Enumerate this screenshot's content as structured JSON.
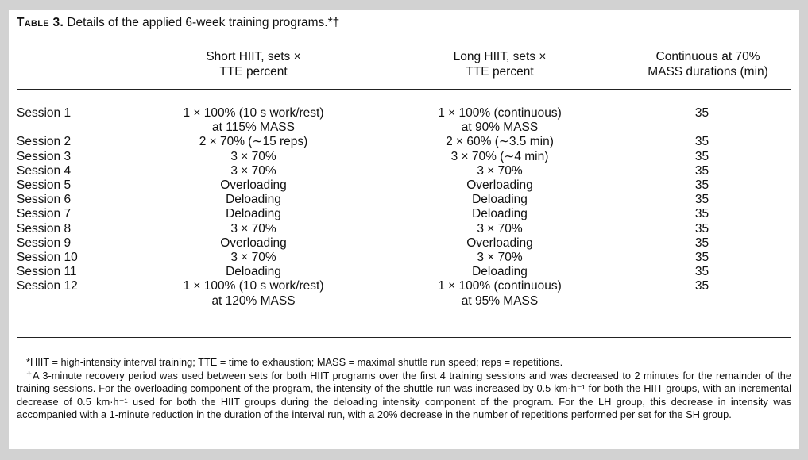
{
  "table": {
    "label": "Table 3.",
    "caption": "Details of the applied 6-week training programs.*†",
    "columns": [
      {
        "lines": [
          "Short HIIT, sets ×",
          "TTE percent"
        ]
      },
      {
        "lines": [
          "Long HIIT, sets ×",
          "TTE percent"
        ]
      },
      {
        "lines": [
          "Continuous at 70%",
          "MASS durations (min)"
        ]
      }
    ],
    "rows": [
      {
        "session": "Session 1",
        "short_hiit": [
          "1 × 100% (10 s work/rest)",
          "at 115% MASS"
        ],
        "long_hiit": [
          "1 × 100% (continuous)",
          "at 90% MASS"
        ],
        "continuous": "35"
      },
      {
        "session": "Session 2",
        "short_hiit": [
          "2 × 70% (∼15 reps)"
        ],
        "long_hiit": [
          "2 × 60% (∼3.5 min)"
        ],
        "continuous": "35"
      },
      {
        "session": "Session 3",
        "short_hiit": [
          "3 × 70%"
        ],
        "long_hiit": [
          "3 × 70% (∼4 min)"
        ],
        "continuous": "35"
      },
      {
        "session": "Session 4",
        "short_hiit": [
          "3 × 70%"
        ],
        "long_hiit": [
          "3 × 70%"
        ],
        "continuous": "35"
      },
      {
        "session": "Session 5",
        "short_hiit": [
          "Overloading"
        ],
        "long_hiit": [
          "Overloading"
        ],
        "continuous": "35"
      },
      {
        "session": "Session 6",
        "short_hiit": [
          "Deloading"
        ],
        "long_hiit": [
          "Deloading"
        ],
        "continuous": "35"
      },
      {
        "session": "Session 7",
        "short_hiit": [
          "Deloading"
        ],
        "long_hiit": [
          "Deloading"
        ],
        "continuous": "35"
      },
      {
        "session": "Session 8",
        "short_hiit": [
          "3 × 70%"
        ],
        "long_hiit": [
          "3 × 70%"
        ],
        "continuous": "35"
      },
      {
        "session": "Session 9",
        "short_hiit": [
          "Overloading"
        ],
        "long_hiit": [
          "Overloading"
        ],
        "continuous": "35"
      },
      {
        "session": "Session 10",
        "short_hiit": [
          "3 × 70%"
        ],
        "long_hiit": [
          "3 × 70%"
        ],
        "continuous": "35"
      },
      {
        "session": "Session 11",
        "short_hiit": [
          "Deloading"
        ],
        "long_hiit": [
          "Deloading"
        ],
        "continuous": "35"
      },
      {
        "session": "Session 12",
        "short_hiit": [
          "1 × 100% (10 s work/rest)",
          "at 120% MASS"
        ],
        "long_hiit": [
          "1 × 100% (continuous)",
          "at 95% MASS"
        ],
        "continuous": "35"
      }
    ],
    "footnotes": [
      "*HIIT = high-intensity interval training; TTE = time to exhaustion; MASS = maximal shuttle run speed; reps = repetitions.",
      "†A 3-minute recovery period was used between sets for both HIIT programs over the first 4 training sessions and was decreased to 2 minutes for the remainder of the training sessions. For the overloading component of the program, the intensity of the shuttle run was increased by 0.5 km·h⁻¹ for both the HIIT groups, with an incremental decrease of 0.5 km·h⁻¹ used for both the HIIT groups during the deloading intensity component of the program. For the LH group, this decrease in intensity was accompanied with a 1-minute reduction in the duration of the interval run, with a 20% decrease in the number of repetitions performed per set for the SH group."
    ]
  }
}
